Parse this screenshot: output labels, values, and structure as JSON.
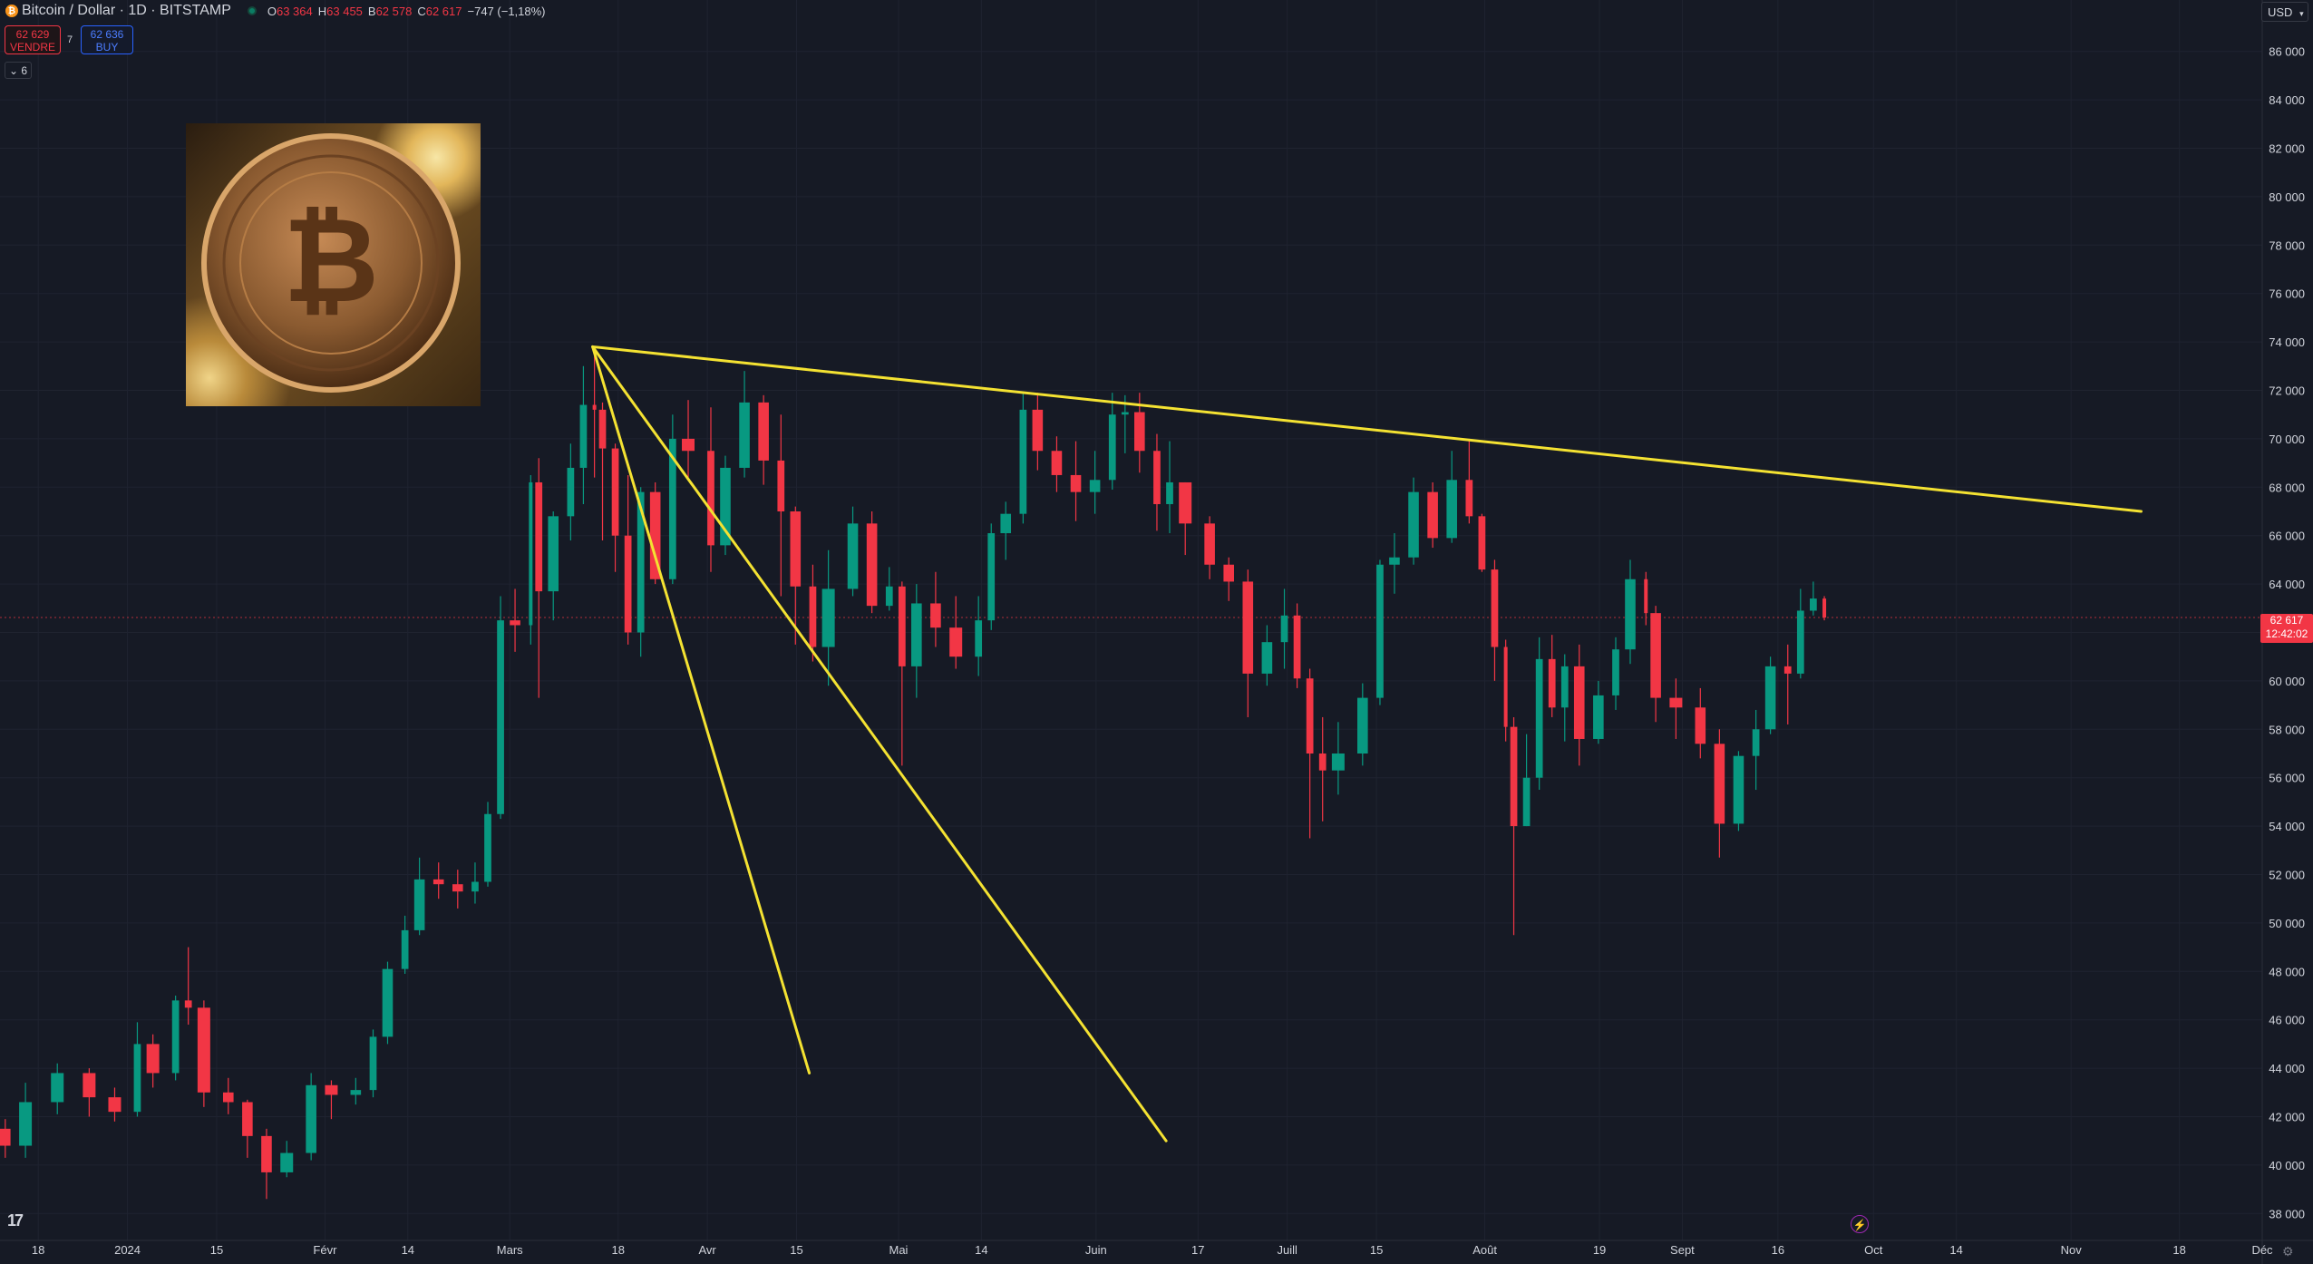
{
  "header": {
    "title": "Bitcoin / Dollar · 1D · BITSTAMP",
    "ohlc": {
      "o_label": "O",
      "o": "63 364",
      "h_label": "H",
      "h": "63 455",
      "b_label": "B",
      "b": "62 578",
      "c_label": "C",
      "c": "62 617",
      "change": "−747 (−1,18%)"
    }
  },
  "trade": {
    "sell_price": "62 629",
    "sell_label": "VENDRE",
    "spread": "7",
    "buy_price": "62 636",
    "buy_label": "BUY"
  },
  "indicators_toggle": "6",
  "currency": "USD",
  "last_price": "62 617",
  "countdown": "12:42:02",
  "colors": {
    "background": "#161a25",
    "up": "#089981",
    "down": "#f23645",
    "trendline": "#f4e232",
    "grid": "#1f2330",
    "text": "#d1d4dc"
  },
  "chart_data": {
    "type": "candlestick",
    "symbol": "BTCUSD",
    "exchange": "BITSTAMP",
    "interval": "1D",
    "ylim": [
      37000,
      87000
    ],
    "y_ticks": [
      38000,
      40000,
      42000,
      44000,
      46000,
      48000,
      50000,
      52000,
      54000,
      56000,
      58000,
      60000,
      62000,
      64000,
      66000,
      68000,
      70000,
      72000,
      74000,
      76000,
      78000,
      80000,
      82000,
      84000,
      86000
    ],
    "y_tick_labels": [
      "38 000",
      "40 000",
      "42 000",
      "44 000",
      "46 000",
      "48 000",
      "50 000",
      "52 000",
      "54 000",
      "56 000",
      "58 000",
      "60 000",
      "62 000",
      "64 000",
      "66 000",
      "68 000",
      "70 000",
      "72 000",
      "74 000",
      "76 000",
      "78 000",
      "80 000",
      "82 000",
      "84 000",
      "86 000"
    ],
    "x_start": "2023-12-12",
    "x_end": "2024-12-01",
    "x_ticks": [
      {
        "date": "2023-12-18",
        "label": "18"
      },
      {
        "date": "2024-01-01",
        "label": "2024"
      },
      {
        "date": "2024-01-15",
        "label": "15"
      },
      {
        "date": "2024-02-01",
        "label": "Févr"
      },
      {
        "date": "2024-02-14",
        "label": "14"
      },
      {
        "date": "2024-03-01",
        "label": "Mars"
      },
      {
        "date": "2024-03-18",
        "label": "18"
      },
      {
        "date": "2024-04-01",
        "label": "Avr"
      },
      {
        "date": "2024-04-15",
        "label": "15"
      },
      {
        "date": "2024-05-01",
        "label": "Mai"
      },
      {
        "date": "2024-05-14",
        "label": "14"
      },
      {
        "date": "2024-06-01",
        "label": "Juin"
      },
      {
        "date": "2024-06-17",
        "label": "17"
      },
      {
        "date": "2024-07-01",
        "label": "Juill"
      },
      {
        "date": "2024-07-15",
        "label": "15"
      },
      {
        "date": "2024-08-01",
        "label": "Août"
      },
      {
        "date": "2024-08-19",
        "label": "19"
      },
      {
        "date": "2024-09-01",
        "label": "Sept"
      },
      {
        "date": "2024-09-16",
        "label": "16"
      },
      {
        "date": "2024-10-01",
        "label": "Oct"
      },
      {
        "date": "2024-10-14",
        "label": "14"
      },
      {
        "date": "2024-11-01",
        "label": "Nov"
      },
      {
        "date": "2024-11-18",
        "label": "18"
      },
      {
        "date": "2024-12-01",
        "label": "Déc"
      }
    ],
    "last_price": 62617,
    "candles": [
      [
        "2023-12-12",
        41500,
        41900,
        40300,
        40800
      ],
      [
        "2023-12-15",
        40800,
        43400,
        40300,
        42600
      ],
      [
        "2023-12-20",
        42600,
        44200,
        42100,
        43800
      ],
      [
        "2023-12-25",
        43800,
        44000,
        42000,
        42800
      ],
      [
        "2023-12-29",
        42800,
        43200,
        41800,
        42200
      ],
      [
        "2024-01-02",
        42200,
        45900,
        42000,
        45000
      ],
      [
        "2024-01-04",
        45000,
        45400,
        43200,
        43800
      ],
      [
        "2024-01-08",
        43800,
        47000,
        43500,
        46800
      ],
      [
        "2024-01-10",
        46800,
        49000,
        45800,
        46500
      ],
      [
        "2024-01-12",
        46500,
        46800,
        42400,
        43000
      ],
      [
        "2024-01-16",
        43000,
        43600,
        42100,
        42600
      ],
      [
        "2024-01-19",
        42600,
        42700,
        40300,
        41200
      ],
      [
        "2024-01-22",
        41200,
        41500,
        38600,
        39700
      ],
      [
        "2024-01-25",
        39700,
        41000,
        39500,
        40500
      ],
      [
        "2024-01-29",
        40500,
        43800,
        40200,
        43300
      ],
      [
        "2024-02-01",
        43300,
        43500,
        41900,
        42900
      ],
      [
        "2024-02-05",
        42900,
        43600,
        42500,
        43100
      ],
      [
        "2024-02-08",
        43100,
        45600,
        42800,
        45300
      ],
      [
        "2024-02-10",
        45300,
        48400,
        45000,
        48100
      ],
      [
        "2024-02-13",
        48100,
        50300,
        47900,
        49700
      ],
      [
        "2024-02-15",
        49700,
        52700,
        49500,
        51800
      ],
      [
        "2024-02-18",
        51800,
        52500,
        51000,
        51600
      ],
      [
        "2024-02-21",
        51600,
        52200,
        50600,
        51300
      ],
      [
        "2024-02-24",
        51300,
        52500,
        50800,
        51700
      ],
      [
        "2024-02-26",
        51700,
        55000,
        51500,
        54500
      ],
      [
        "2024-02-28",
        54500,
        63500,
        54300,
        62500
      ],
      [
        "2024-03-01",
        62500,
        63800,
        61200,
        62300
      ],
      [
        "2024-03-04",
        62300,
        68500,
        61500,
        68200
      ],
      [
        "2024-03-05",
        68200,
        69200,
        59300,
        63700
      ],
      [
        "2024-03-07",
        63700,
        67000,
        62500,
        66800
      ],
      [
        "2024-03-10",
        66800,
        69800,
        65800,
        68800
      ],
      [
        "2024-03-12",
        68800,
        73000,
        67300,
        71400
      ],
      [
        "2024-03-14",
        71400,
        73700,
        68400,
        71200
      ],
      [
        "2024-03-15",
        71200,
        71500,
        65800,
        69600
      ],
      [
        "2024-03-17",
        69600,
        69800,
        64500,
        66000
      ],
      [
        "2024-03-19",
        66000,
        68500,
        61500,
        62000
      ],
      [
        "2024-03-21",
        62000,
        68000,
        61000,
        67800
      ],
      [
        "2024-03-23",
        67800,
        68200,
        64000,
        64200
      ],
      [
        "2024-03-26",
        64200,
        71000,
        64000,
        70000
      ],
      [
        "2024-03-28",
        70000,
        71600,
        68400,
        69500
      ],
      [
        "2024-04-01",
        69500,
        71300,
        64500,
        65600
      ],
      [
        "2024-04-03",
        65600,
        69300,
        65200,
        68800
      ],
      [
        "2024-04-06",
        68800,
        72800,
        68400,
        71500
      ],
      [
        "2024-04-09",
        71500,
        71800,
        68100,
        69100
      ],
      [
        "2024-04-12",
        69100,
        71000,
        63500,
        67000
      ],
      [
        "2024-04-14",
        67000,
        67200,
        61500,
        63900
      ],
      [
        "2024-04-17",
        63900,
        64800,
        60800,
        61400
      ],
      [
        "2024-04-19",
        61400,
        65400,
        59800,
        63800
      ],
      [
        "2024-04-23",
        63800,
        67200,
        63500,
        66500
      ],
      [
        "2024-04-26",
        66500,
        67000,
        62800,
        63100
      ],
      [
        "2024-04-29",
        63100,
        64700,
        62900,
        63900
      ],
      [
        "2024-05-01",
        63900,
        64100,
        56500,
        60600
      ],
      [
        "2024-05-03",
        60600,
        64000,
        59300,
        63200
      ],
      [
        "2024-05-06",
        63200,
        64500,
        61400,
        62200
      ],
      [
        "2024-05-09",
        62200,
        63500,
        60500,
        61000
      ],
      [
        "2024-05-13",
        61000,
        63500,
        60200,
        62500
      ],
      [
        "2024-05-15",
        62500,
        66500,
        62100,
        66100
      ],
      [
        "2024-05-17",
        66100,
        67400,
        65000,
        66900
      ],
      [
        "2024-05-20",
        66900,
        71900,
        66500,
        71200
      ],
      [
        "2024-05-22",
        71200,
        71900,
        68700,
        69500
      ],
      [
        "2024-05-25",
        69500,
        70100,
        67800,
        68500
      ],
      [
        "2024-05-28",
        68500,
        69900,
        66600,
        67800
      ],
      [
        "2024-05-31",
        67800,
        69500,
        66900,
        68300
      ],
      [
        "2024-06-03",
        68300,
        71900,
        67900,
        71000
      ],
      [
        "2024-06-05",
        71000,
        71800,
        69400,
        71100
      ],
      [
        "2024-06-07",
        71100,
        71900,
        68600,
        69500
      ],
      [
        "2024-06-10",
        69500,
        70200,
        66200,
        67300
      ],
      [
        "2024-06-12",
        67300,
        69900,
        66100,
        68200
      ],
      [
        "2024-06-14",
        68200,
        68200,
        65200,
        66500
      ],
      [
        "2024-06-18",
        66500,
        66800,
        64200,
        64800
      ],
      [
        "2024-06-21",
        64800,
        65100,
        63300,
        64100
      ],
      [
        "2024-06-24",
        64100,
        64600,
        58500,
        60300
      ],
      [
        "2024-06-27",
        60300,
        62300,
        59800,
        61600
      ],
      [
        "2024-06-30",
        61600,
        63800,
        60500,
        62700
      ],
      [
        "2024-07-02",
        62700,
        63200,
        59700,
        60100
      ],
      [
        "2024-07-04",
        60100,
        60500,
        53500,
        57000
      ],
      [
        "2024-07-06",
        57000,
        58500,
        54200,
        56300
      ],
      [
        "2024-07-08",
        56300,
        58300,
        55300,
        57000
      ],
      [
        "2024-07-12",
        57000,
        59900,
        56500,
        59300
      ],
      [
        "2024-07-15",
        59300,
        65000,
        59000,
        64800
      ],
      [
        "2024-07-17",
        64800,
        66100,
        63600,
        65100
      ],
      [
        "2024-07-20",
        65100,
        68400,
        64800,
        67800
      ],
      [
        "2024-07-23",
        67800,
        68200,
        65500,
        65900
      ],
      [
        "2024-07-26",
        65900,
        69500,
        65700,
        68300
      ],
      [
        "2024-07-29",
        68300,
        70000,
        66500,
        66800
      ],
      [
        "2024-07-31",
        66800,
        66900,
        64500,
        64600
      ],
      [
        "2024-08-02",
        64600,
        65000,
        60000,
        61400
      ],
      [
        "2024-08-04",
        61400,
        61700,
        57500,
        58100
      ],
      [
        "2024-08-05",
        58100,
        58500,
        49500,
        54000
      ],
      [
        "2024-08-07",
        54000,
        57800,
        54000,
        56000
      ],
      [
        "2024-08-09",
        56000,
        61800,
        55500,
        60900
      ],
      [
        "2024-08-11",
        60900,
        61900,
        58500,
        58900
      ],
      [
        "2024-08-13",
        58900,
        61100,
        57500,
        60600
      ],
      [
        "2024-08-15",
        60600,
        61500,
        56500,
        57600
      ],
      [
        "2024-08-18",
        57600,
        60000,
        57400,
        59400
      ],
      [
        "2024-08-21",
        59400,
        61800,
        58800,
        61300
      ],
      [
        "2024-08-23",
        61300,
        65000,
        60700,
        64200
      ],
      [
        "2024-08-26",
        64200,
        64500,
        62300,
        62800
      ],
      [
        "2024-08-27",
        62800,
        63100,
        58300,
        59300
      ],
      [
        "2024-08-30",
        59300,
        60100,
        57600,
        58900
      ],
      [
        "2024-09-03",
        58900,
        59700,
        56800,
        57400
      ],
      [
        "2024-09-06",
        57400,
        58000,
        52700,
        54100
      ],
      [
        "2024-09-09",
        54100,
        57100,
        53800,
        56900
      ],
      [
        "2024-09-12",
        56900,
        58800,
        55500,
        58000
      ],
      [
        "2024-09-14",
        58000,
        61000,
        57800,
        60600
      ],
      [
        "2024-09-17",
        60600,
        61500,
        58200,
        60300
      ],
      [
        "2024-09-19",
        60300,
        63800,
        60100,
        62900
      ],
      [
        "2024-09-21",
        62900,
        64100,
        62700,
        63400
      ],
      [
        "2024-09-23",
        63400,
        63500,
        62500,
        62617
      ]
    ],
    "trendlines": [
      {
        "name": "resistance",
        "x1": "2024-03-14",
        "y1": 73800,
        "x2": "2024-11-12",
        "y2": 67000
      },
      {
        "name": "fan-steep",
        "x1": "2024-03-14",
        "y1": 73800,
        "x2": "2024-04-17",
        "y2": 43800
      },
      {
        "name": "fan-shallow",
        "x1": "2024-03-14",
        "y1": 73800,
        "x2": "2024-06-12",
        "y2": 41000
      }
    ]
  }
}
